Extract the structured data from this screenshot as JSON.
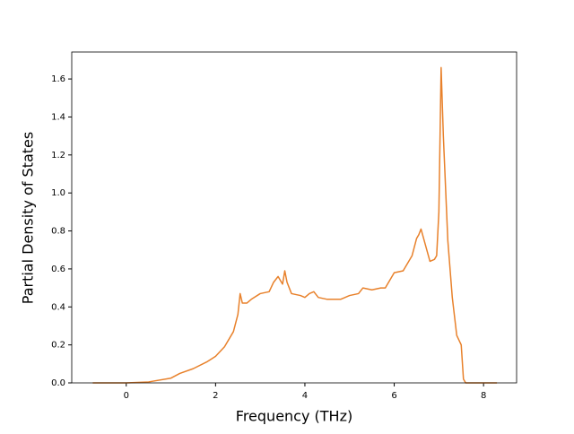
{
  "chart_data": {
    "type": "line",
    "x_label": "Frequency (THz)",
    "y_label": "Partial Density of States",
    "x": [
      -0.75,
      0,
      0.5,
      1.0,
      1.2,
      1.5,
      1.8,
      2.0,
      2.2,
      2.4,
      2.5,
      2.55,
      2.6,
      2.7,
      2.8,
      3.0,
      3.2,
      3.3,
      3.4,
      3.5,
      3.55,
      3.6,
      3.7,
      3.9,
      4.0,
      4.1,
      4.2,
      4.3,
      4.5,
      4.8,
      5.0,
      5.2,
      5.3,
      5.5,
      5.7,
      5.8,
      6.0,
      6.2,
      6.4,
      6.5,
      6.55,
      6.6,
      6.8,
      6.9,
      6.95,
      7.0,
      7.05,
      7.1,
      7.2,
      7.3,
      7.4,
      7.5,
      7.55,
      7.6,
      8.3
    ],
    "values": [
      0,
      0,
      0.005,
      0.025,
      0.05,
      0.075,
      0.11,
      0.14,
      0.19,
      0.27,
      0.36,
      0.47,
      0.42,
      0.42,
      0.44,
      0.47,
      0.48,
      0.53,
      0.56,
      0.52,
      0.59,
      0.53,
      0.47,
      0.46,
      0.45,
      0.47,
      0.48,
      0.45,
      0.44,
      0.44,
      0.46,
      0.47,
      0.5,
      0.49,
      0.5,
      0.5,
      0.58,
      0.59,
      0.67,
      0.76,
      0.78,
      0.81,
      0.64,
      0.65,
      0.67,
      0.9,
      1.66,
      1.3,
      0.75,
      0.45,
      0.25,
      0.2,
      0.02,
      0,
      0
    ],
    "color": "#e8812b",
    "xlim": [
      -1.22,
      8.74
    ],
    "ylim": [
      0,
      1.742
    ],
    "xticks": [
      0,
      2,
      4,
      6,
      8
    ],
    "yticks": [
      {
        "value": 0,
        "label": "0.0"
      },
      0.2,
      0.4,
      0.6,
      0.8,
      {
        "value": 1,
        "label": "1.0"
      },
      1.2,
      1.4,
      1.6
    ],
    "grid": false
  }
}
